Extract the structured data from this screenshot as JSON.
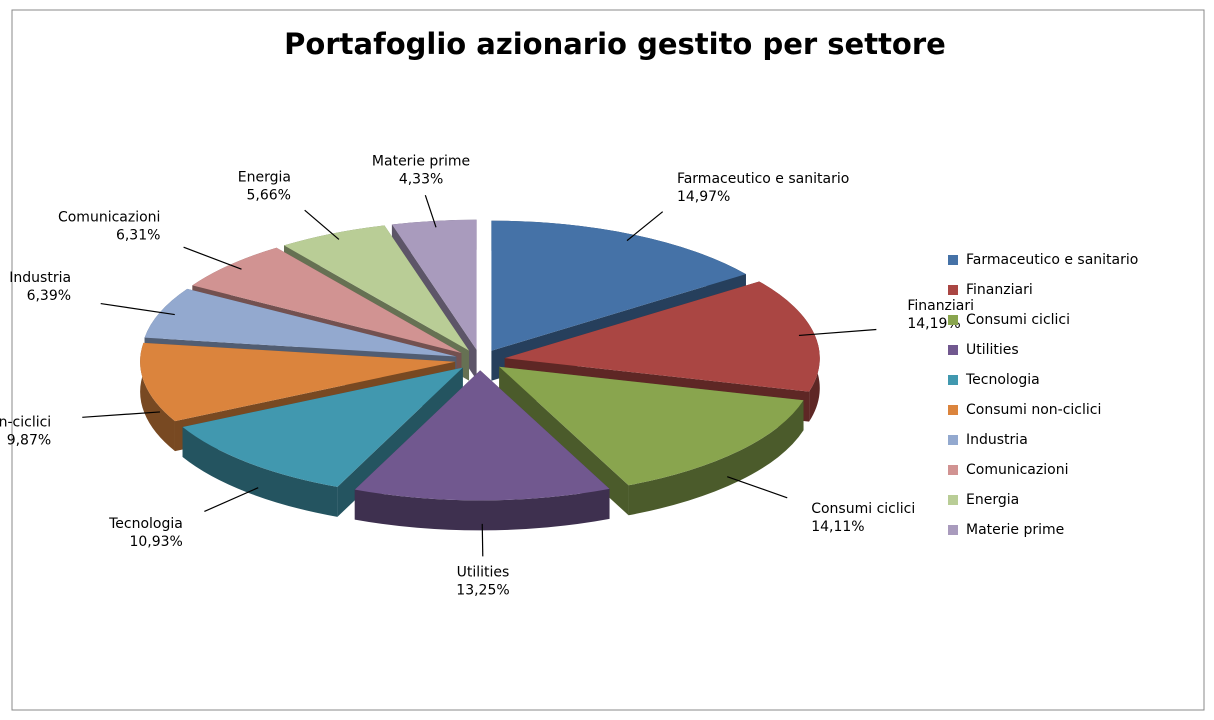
{
  "chart_data": {
    "type": "pie",
    "title": "Portafoglio azionario gestito per settore",
    "categories": [
      "Farmaceutico e sanitario",
      "Finanziari",
      "Consumi ciclici",
      "Utilities",
      "Tecnologia",
      "Consumi non-ciclici",
      "Industria",
      "Comunicazioni",
      "Energia",
      "Materie prime"
    ],
    "values": [
      14.97,
      14.19,
      14.11,
      13.25,
      10.93,
      9.87,
      6.39,
      6.31,
      5.66,
      4.33
    ],
    "value_labels": [
      "14,97%",
      "14,19%",
      "14,11%",
      "13,25%",
      "10,93%",
      "9,87%",
      "6,39%",
      "6,31%",
      "5,66%",
      "4,33%"
    ],
    "colors": [
      "#4572a7",
      "#aa4643",
      "#89a54e",
      "#71588f",
      "#4198af",
      "#db843d",
      "#93a9cf",
      "#d19392",
      "#b9cd96",
      "#a99bbd"
    ],
    "legend": "right"
  }
}
